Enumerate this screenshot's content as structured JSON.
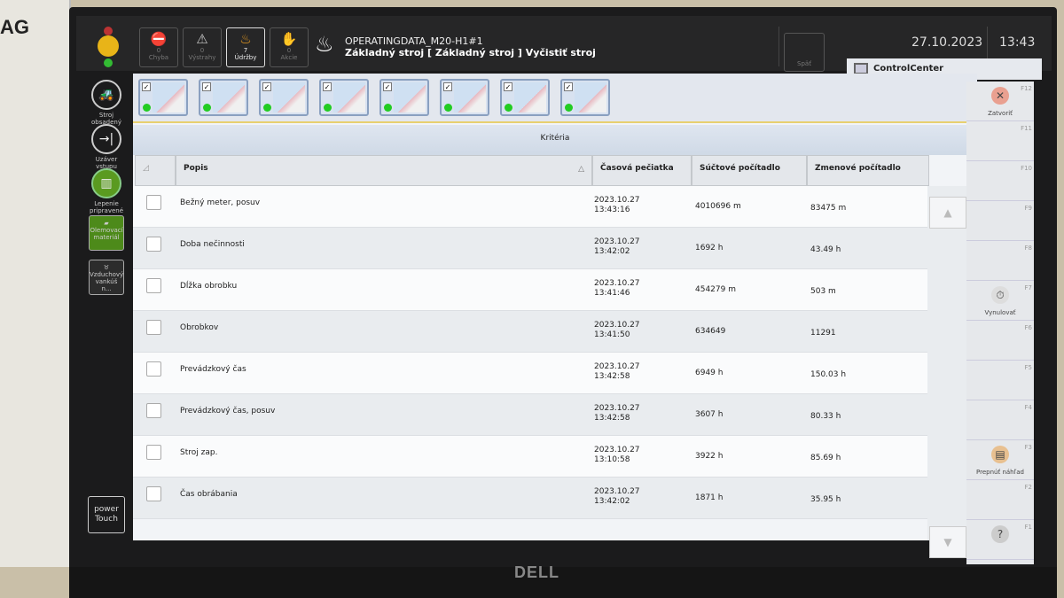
{
  "device": {
    "brand": "AG"
  },
  "monitor": {
    "brand": "DELL"
  },
  "topbar": {
    "buttons": [
      {
        "count": "0",
        "label": "Chyba",
        "icon": "stop-icon"
      },
      {
        "count": "0",
        "label": "Výstrahy",
        "icon": "warning-icon"
      },
      {
        "count": "7",
        "label": "Údržby",
        "icon": "oil-can-icon",
        "active": true
      },
      {
        "count": "0",
        "label": "Akcie",
        "icon": "hand-icon"
      }
    ],
    "title_line1": "OPERATINGDATA_M20-H1#1",
    "title_line2": "Základný stroj [ Základný stroj ] Vyčistiť stroj",
    "back_label": "Späť",
    "date": "27.10.2023",
    "time": "13:43"
  },
  "app_tab": {
    "label": "ControlCenter"
  },
  "sidebar": [
    {
      "label": "Stroj obsadený",
      "icon": "machine-icon"
    },
    {
      "label": "Uzáver vstupu",
      "icon": "entry-lock-icon"
    },
    {
      "label": "Lepenie pripravené",
      "icon": "glue-icon"
    },
    {
      "label": "Olemovací materiál",
      "icon": "edge-material-icon"
    },
    {
      "label": "Vzduchový vankúš n...",
      "icon": "air-cushion-icon"
    }
  ],
  "power_button": {
    "line1": "power",
    "line2": "Touch"
  },
  "criteria": {
    "title": "Kritéria"
  },
  "table": {
    "headers": {
      "description": "Popis",
      "timestamp": "Časová pečiatka",
      "total": "Súčtové počítadlo",
      "shift": "Zmenové počítadlo"
    },
    "rows": [
      {
        "description": "Bežný meter, posuv",
        "date": "2023.10.27",
        "time": "13:43:16",
        "total": "4010696 m",
        "shift": "83475 m"
      },
      {
        "description": "Doba nečinnosti",
        "date": "2023.10.27",
        "time": "13:42:02",
        "total": "1692 h",
        "shift": "43.49 h"
      },
      {
        "description": "Dĺžka obrobku",
        "date": "2023.10.27",
        "time": "13:41:46",
        "total": "454279 m",
        "shift": "503 m"
      },
      {
        "description": "Obrobkov",
        "date": "2023.10.27",
        "time": "13:41:50",
        "total": "634649",
        "shift": "11291"
      },
      {
        "description": "Prevádzkový čas",
        "date": "2023.10.27",
        "time": "13:42:58",
        "total": "6949 h",
        "shift": "150.03 h"
      },
      {
        "description": "Prevádzkový čas, posuv",
        "date": "2023.10.27",
        "time": "13:42:58",
        "total": "3607 h",
        "shift": "80.33 h"
      },
      {
        "description": "Stroj zap.",
        "date": "2023.10.27",
        "time": "13:10:58",
        "total": "3922 h",
        "shift": "85.69 h"
      },
      {
        "description": "Čas obrábania",
        "date": "2023.10.27",
        "time": "13:42:02",
        "total": "1871 h",
        "shift": "35.95 h"
      }
    ]
  },
  "fkeys": [
    {
      "key": "F12",
      "label": "Zatvoriť",
      "icon": "close-icon"
    },
    {
      "key": "F11",
      "label": ""
    },
    {
      "key": "F10",
      "label": ""
    },
    {
      "key": "F9",
      "label": ""
    },
    {
      "key": "F8",
      "label": ""
    },
    {
      "key": "F7",
      "label": "Vynulovať",
      "icon": "reset-timer-icon"
    },
    {
      "key": "F6",
      "label": ""
    },
    {
      "key": "F5",
      "label": ""
    },
    {
      "key": "F4",
      "label": ""
    },
    {
      "key": "F3",
      "label": "Prepnúť náhľad",
      "icon": "switch-view-icon"
    },
    {
      "key": "F2",
      "label": ""
    },
    {
      "key": "F1",
      "label": "",
      "icon": "help-icon"
    }
  ]
}
